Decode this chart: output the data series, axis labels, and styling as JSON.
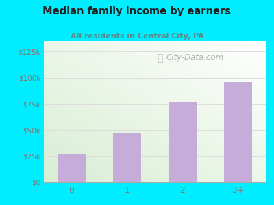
{
  "title": "Median family income by earners",
  "subtitle": "All residents in Central City, PA",
  "categories": [
    "0",
    "1",
    "2",
    "3+"
  ],
  "values": [
    27000,
    47500,
    77000,
    96000
  ],
  "bar_color": "#c5acd9",
  "background_outer": "#00eeff",
  "title_color": "#222222",
  "subtitle_color": "#5b8a8a",
  "axis_color": "#7a7a7a",
  "ylabel_values": [
    0,
    25000,
    50000,
    75000,
    100000,
    125000
  ],
  "ylabel_labels": [
    "$0",
    "$25k",
    "$50k",
    "$75k",
    "$100k",
    "$125k"
  ],
  "ylim": [
    0,
    135000
  ],
  "watermark": "City-Data.com",
  "grid_color": "#dddddd",
  "chart_bg_green": "#c8e6c0",
  "chart_bg_white": "#f8fff8"
}
